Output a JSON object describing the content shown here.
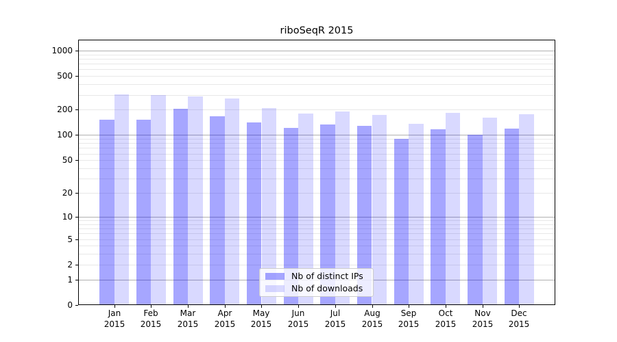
{
  "chart_data": {
    "type": "bar",
    "title": "riboSeqR 2015",
    "categories": [
      "Jan",
      "Feb",
      "Mar",
      "Apr",
      "May",
      "Jun",
      "Jul",
      "Aug",
      "Sep",
      "Oct",
      "Nov",
      "Dec"
    ],
    "category_year": "2015",
    "series": [
      {
        "name": "Nb of distinct IPs",
        "color": "rgba(0,0,255,0.35)",
        "values": [
          152,
          153,
          207,
          166,
          142,
          121,
          133,
          129,
          90,
          118,
          101,
          120
        ]
      },
      {
        "name": "Nb of downloads",
        "color": "rgba(0,0,255,0.15)",
        "values": [
          305,
          298,
          289,
          273,
          208,
          181,
          191,
          173,
          136,
          185,
          162,
          178
        ]
      }
    ],
    "y_scale": "log10(1+v)",
    "y_ticks": [
      1000,
      500,
      200,
      100,
      50,
      20,
      10,
      5,
      2,
      1,
      0
    ],
    "y_major_gridlines": [
      1,
      10,
      100,
      1000
    ],
    "y_minor_gridlines": [
      2,
      3,
      4,
      5,
      6,
      7,
      8,
      9,
      20,
      30,
      40,
      50,
      60,
      70,
      80,
      90,
      200,
      300,
      400,
      500,
      600,
      700,
      800,
      900
    ],
    "ylim": [
      0,
      1345
    ],
    "legend_position": "lower-center",
    "colors": {
      "axis": "#000000",
      "major_grid": "#b0b0b0",
      "minor_grid": "#e8e8e8",
      "text": "#000000"
    }
  }
}
